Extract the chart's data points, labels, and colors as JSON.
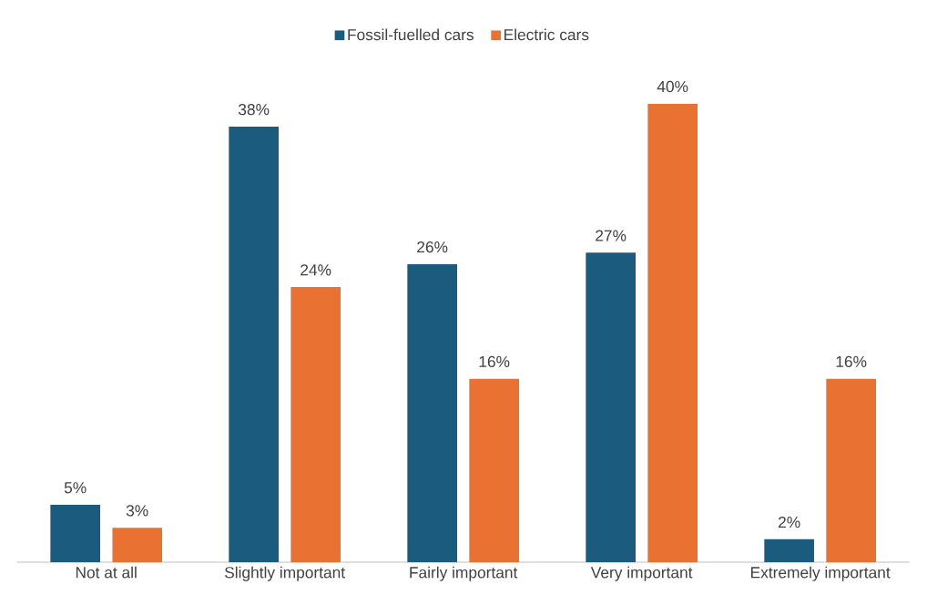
{
  "chart_data": {
    "type": "bar",
    "categories": [
      "Not at all",
      "Slightly important",
      "Fairly important",
      "Very important",
      "Extremely important"
    ],
    "series": [
      {
        "name": "Fossil-fuelled cars",
        "color": "#1b5c7e",
        "values": [
          5,
          38,
          26,
          27,
          2
        ],
        "value_labels": [
          "5%",
          "38%",
          "26%",
          "27%",
          "2%"
        ]
      },
      {
        "name": "Electric cars",
        "color": "#e97132",
        "values": [
          3,
          24,
          16,
          40,
          16
        ],
        "value_labels": [
          "3%",
          "24%",
          "16%",
          "40%",
          "16%"
        ]
      }
    ],
    "legend": "top"
  }
}
